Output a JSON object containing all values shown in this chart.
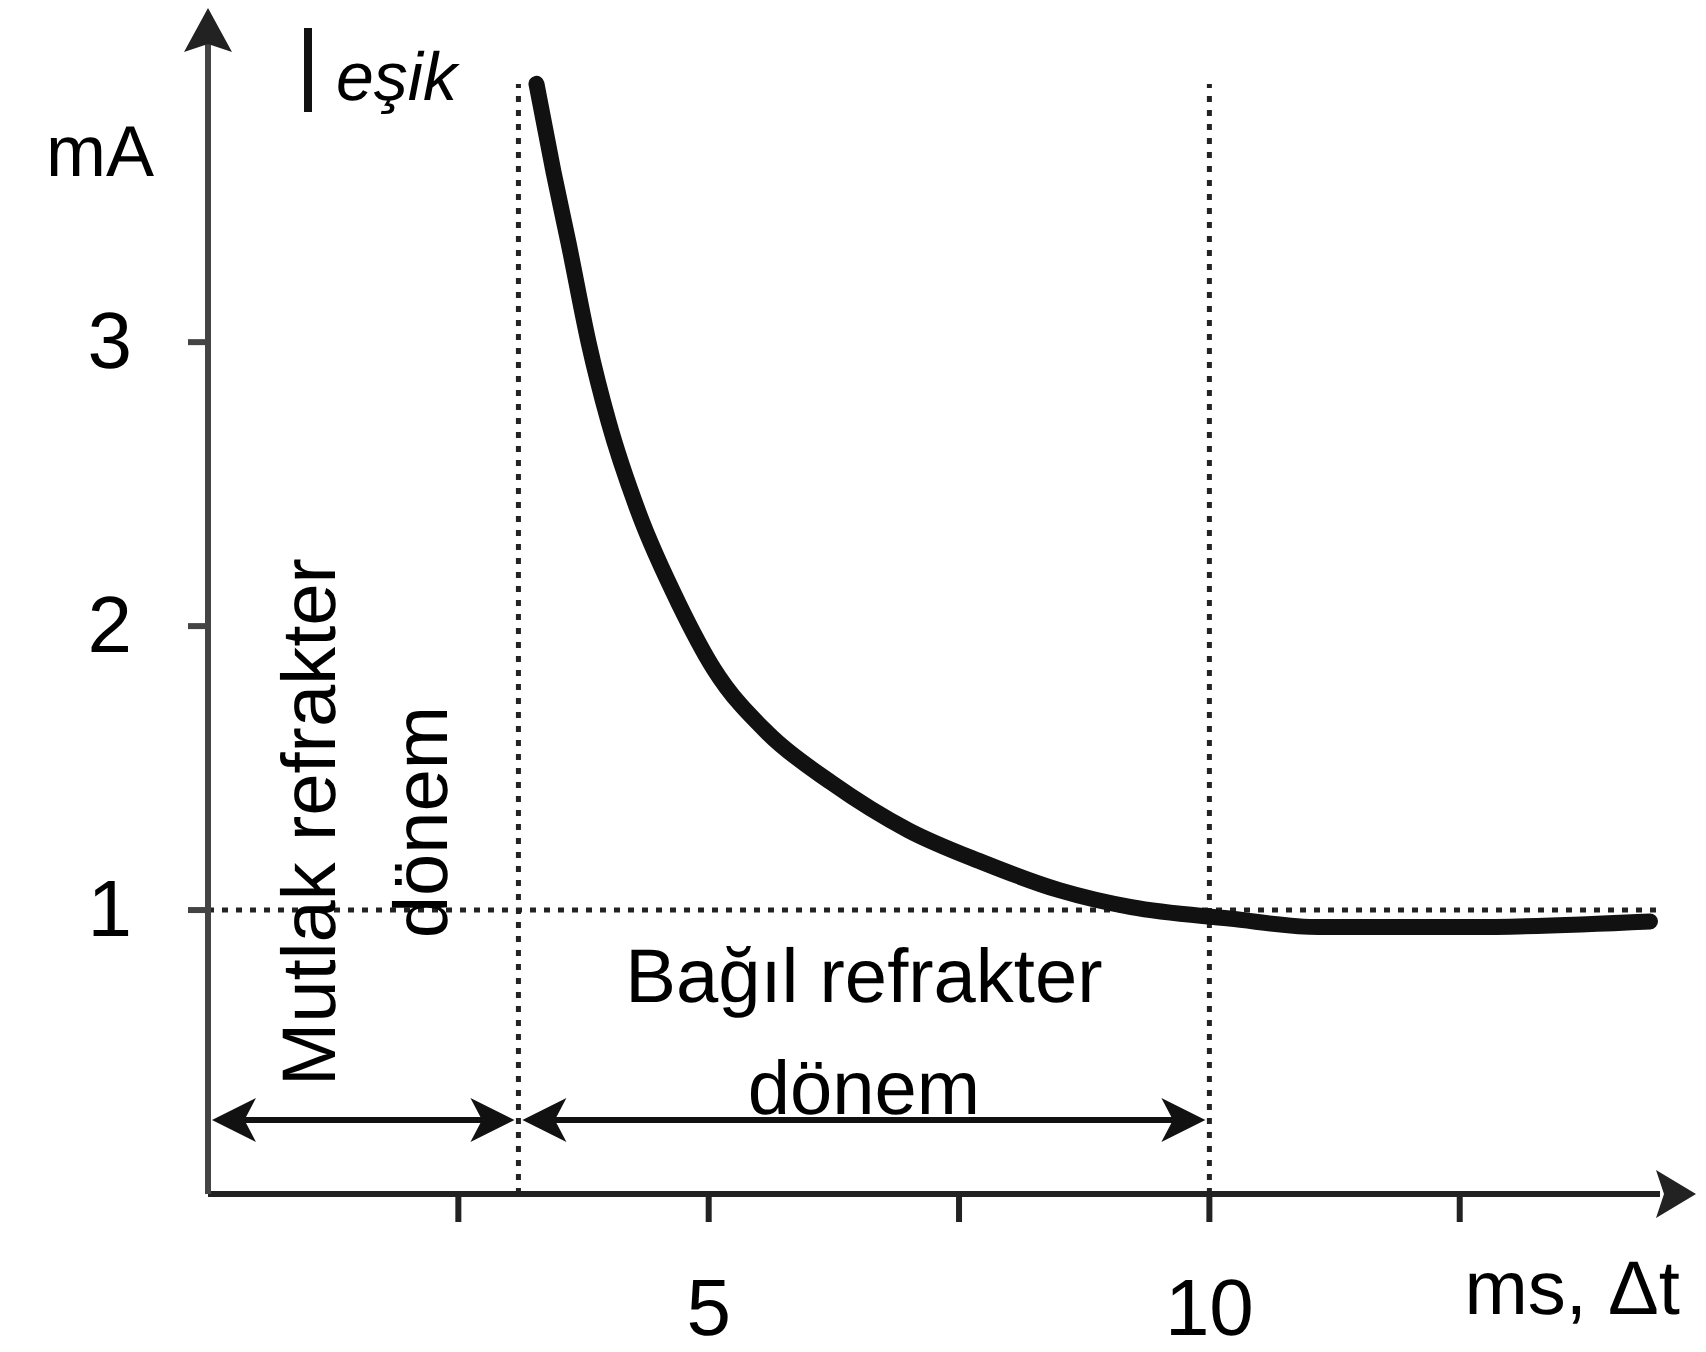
{
  "chart_data": {
    "type": "line",
    "xlabel": "ms, Δt",
    "ylabel": "mA",
    "annotations": [
      "eşik",
      "Mutlak refrakter dönem",
      "Bağıl refrakter dönem"
    ],
    "xlim": [
      0,
      14.5
    ],
    "ylim": [
      0,
      4.05
    ],
    "xticks": [
      {
        "value": 2.5,
        "label": null
      },
      5,
      {
        "value": 7.5,
        "label": null
      },
      10,
      {
        "value": 12.5,
        "label": null
      }
    ],
    "yticks": [
      1,
      2,
      3
    ],
    "series": [
      {
        "color": "#111111",
        "x": [
          3.28,
          3.45,
          3.6,
          3.8,
          4.0,
          4.3,
          4.7,
          5.05,
          5.6,
          6.22,
          7.0,
          7.72,
          8.5,
          9.22,
          10.2,
          11.09,
          12.6,
          14.4
        ],
        "values": [
          3.91,
          3.6,
          3.35,
          3.0,
          2.72,
          2.4,
          2.08,
          1.85,
          1.62,
          1.45,
          1.28,
          1.17,
          1.07,
          1.01,
          0.97,
          0.94,
          0.94,
          0.96
        ]
      }
    ],
    "ref_lines": [
      {
        "axis": "y",
        "value": 1,
        "line_style": "dotted"
      },
      {
        "axis": "x",
        "value": 3.1,
        "line_style": "dotted"
      },
      {
        "axis": "x",
        "value": 10,
        "line_style": "dotted"
      }
    ],
    "grid": false,
    "marker": "none",
    "line_style": "solid"
  }
}
